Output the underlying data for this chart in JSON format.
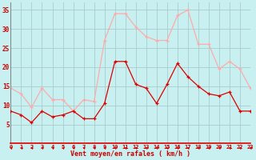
{
  "x": [
    0,
    1,
    2,
    3,
    4,
    5,
    6,
    7,
    8,
    9,
    10,
    11,
    12,
    13,
    14,
    15,
    16,
    17,
    18,
    19,
    20,
    21,
    22,
    23
  ],
  "wind_avg": [
    8.5,
    7.5,
    5.5,
    8.5,
    7.0,
    7.5,
    8.5,
    6.5,
    6.5,
    10.5,
    21.5,
    21.5,
    15.5,
    14.5,
    10.5,
    15.5,
    21.0,
    17.5,
    15.0,
    13.0,
    12.5,
    13.5,
    8.5,
    8.5
  ],
  "wind_gust": [
    14.5,
    13.0,
    9.5,
    14.5,
    11.5,
    11.5,
    8.5,
    11.5,
    11.0,
    27.0,
    34.0,
    34.0,
    30.5,
    28.0,
    27.0,
    27.0,
    33.5,
    35.0,
    26.0,
    26.0,
    19.5,
    21.5,
    19.5,
    14.5
  ],
  "avg_color": "#dd0000",
  "gust_color": "#ffaaaa",
  "bg_color": "#c8f0f0",
  "grid_color": "#aacccc",
  "xlabel": "Vent moyen/en rafales ( km/h )",
  "xlabel_color": "#cc0000",
  "tick_color": "#cc0000",
  "ylim": [
    0,
    37
  ],
  "yticks": [
    5,
    10,
    15,
    20,
    25,
    30,
    35
  ],
  "xlim": [
    0,
    23
  ],
  "xticks": [
    0,
    1,
    2,
    3,
    4,
    5,
    6,
    7,
    8,
    9,
    10,
    11,
    12,
    13,
    14,
    15,
    16,
    17,
    18,
    19,
    20,
    21,
    22,
    23
  ]
}
